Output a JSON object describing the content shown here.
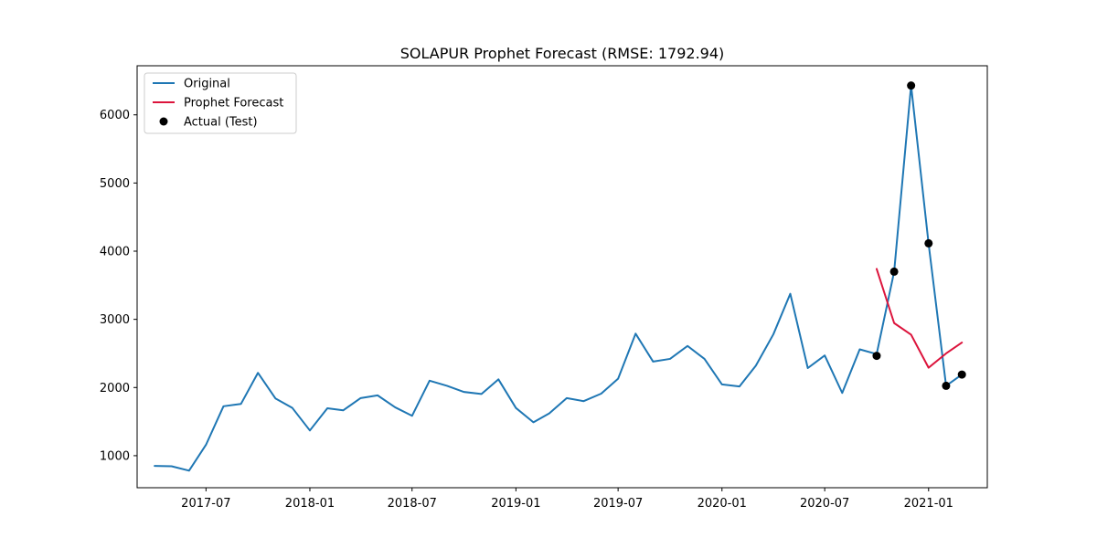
{
  "chart_data": {
    "type": "line",
    "title": "SOLAPUR Prophet Forecast (RMSE: 1792.94)",
    "xlabel": "",
    "ylabel": "",
    "x_type": "date",
    "xlim": [
      "2017-03-01",
      "2021-04-15"
    ],
    "ylim": [
      530,
      6720
    ],
    "x_ticks": [
      "2017-07-01",
      "2018-01-01",
      "2018-07-01",
      "2019-01-01",
      "2019-07-01",
      "2020-01-01",
      "2020-07-01",
      "2021-01-01"
    ],
    "x_tick_labels": [
      "2017-07",
      "2018-01",
      "2018-07",
      "2019-01",
      "2019-07",
      "2020-01",
      "2020-07",
      "2021-01"
    ],
    "y_ticks": [
      1000,
      2000,
      3000,
      4000,
      5000,
      6000
    ],
    "y_tick_labels": [
      "1000",
      "2000",
      "3000",
      "4000",
      "5000",
      "6000"
    ],
    "grid": false,
    "legend_position": "top-left",
    "series": [
      {
        "name": "Original",
        "kind": "line",
        "color": "#1f77b4",
        "points": [
          [
            "2017-04-01",
            850
          ],
          [
            "2017-05-01",
            845
          ],
          [
            "2017-06-01",
            780
          ],
          [
            "2017-07-01",
            1160
          ],
          [
            "2017-08-01",
            1725
          ],
          [
            "2017-09-01",
            1760
          ],
          [
            "2017-10-01",
            2215
          ],
          [
            "2017-11-01",
            1840
          ],
          [
            "2017-12-01",
            1700
          ],
          [
            "2018-01-01",
            1370
          ],
          [
            "2018-02-01",
            1695
          ],
          [
            "2018-03-01",
            1665
          ],
          [
            "2018-04-01",
            1845
          ],
          [
            "2018-05-01",
            1885
          ],
          [
            "2018-06-01",
            1710
          ],
          [
            "2018-07-01",
            1585
          ],
          [
            "2018-08-01",
            2100
          ],
          [
            "2018-09-01",
            2025
          ],
          [
            "2018-10-01",
            1935
          ],
          [
            "2018-11-01",
            1905
          ],
          [
            "2018-12-01",
            2120
          ],
          [
            "2019-01-01",
            1700
          ],
          [
            "2019-02-01",
            1490
          ],
          [
            "2019-03-01",
            1620
          ],
          [
            "2019-04-01",
            1845
          ],
          [
            "2019-05-01",
            1800
          ],
          [
            "2019-06-01",
            1910
          ],
          [
            "2019-07-01",
            2130
          ],
          [
            "2019-08-01",
            2790
          ],
          [
            "2019-09-01",
            2380
          ],
          [
            "2019-10-01",
            2420
          ],
          [
            "2019-11-01",
            2610
          ],
          [
            "2019-12-01",
            2420
          ],
          [
            "2020-01-01",
            2045
          ],
          [
            "2020-02-01",
            2015
          ],
          [
            "2020-03-01",
            2320
          ],
          [
            "2020-04-01",
            2780
          ],
          [
            "2020-05-01",
            3375
          ],
          [
            "2020-06-01",
            2285
          ],
          [
            "2020-07-01",
            2470
          ],
          [
            "2020-08-01",
            1920
          ],
          [
            "2020-09-01",
            2560
          ],
          [
            "2020-10-01",
            2490
          ],
          [
            "2020-11-01",
            3700
          ],
          [
            "2020-12-01",
            6430
          ],
          [
            "2021-01-01",
            4110
          ],
          [
            "2021-02-01",
            2025
          ],
          [
            "2021-03-01",
            2190
          ]
        ]
      },
      {
        "name": "Prophet Forecast",
        "kind": "line",
        "color": "#dc143c",
        "points": [
          [
            "2020-10-01",
            3740
          ],
          [
            "2020-11-01",
            2945
          ],
          [
            "2020-12-01",
            2775
          ],
          [
            "2021-01-01",
            2290
          ],
          [
            "2021-02-01",
            2500
          ],
          [
            "2021-03-01",
            2660
          ]
        ]
      },
      {
        "name": "Actual (Test)",
        "kind": "scatter",
        "color": "#000000",
        "points": [
          [
            "2020-10-01",
            2465
          ],
          [
            "2020-11-01",
            3700
          ],
          [
            "2020-12-01",
            6430
          ],
          [
            "2021-01-01",
            4115
          ],
          [
            "2021-02-01",
            2025
          ],
          [
            "2021-03-01",
            2190
          ]
        ]
      }
    ]
  }
}
